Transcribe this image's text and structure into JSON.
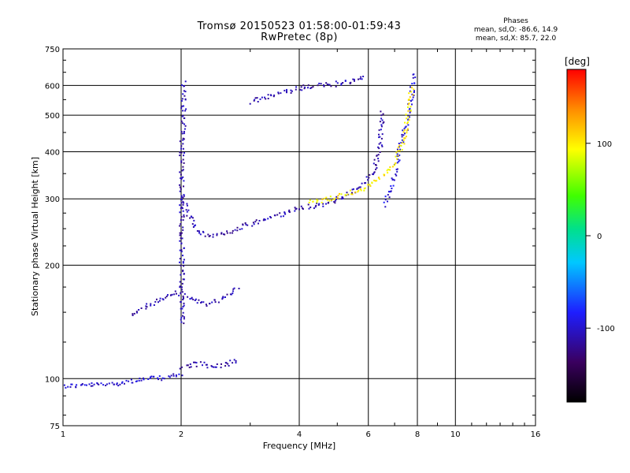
{
  "chart_data": {
    "type": "scatter",
    "title": "Tromsø 20150523 01:58:00-01:59:43",
    "subtitle": "RwPretec (8p)",
    "xlabel": "Frequency [MHz]",
    "ylabel": "Stationary phase Virtual Height [km]",
    "xscale": "log",
    "yscale": "log",
    "xlim": [
      1,
      16
    ],
    "ylim": [
      75,
      750
    ],
    "xticks": [
      1,
      2,
      4,
      6,
      8,
      10,
      16
    ],
    "yticks": [
      75,
      100,
      200,
      300,
      400,
      500,
      600,
      750
    ],
    "grid": true,
    "stats": {
      "heading": "Phases",
      "line_o": "mean, sd,O: -86.6, 14.9",
      "line_x": "mean, sd,X: 85.7, 22.0"
    },
    "colorbar": {
      "label": "[deg]",
      "range": [
        -180,
        180
      ],
      "ticks": [
        100,
        0,
        -100
      ],
      "tick_labels": [
        "100",
        "0",
        "-100"
      ]
    },
    "series": [
      {
        "mode": "O",
        "segments": [
          {
            "x": [
              1.0,
              1.3,
              1.6,
              1.8,
              2.0
            ],
            "y": [
              96,
              97,
              100,
              101,
              103
            ],
            "phase": -100
          },
          {
            "x": [
              2.0,
              2.0,
              2.0,
              2.0,
              2.02,
              2.02
            ],
            "y": [
              140,
              200,
              300,
              400,
              500,
              620
            ],
            "phase": -110
          },
          {
            "x": [
              2.0,
              2.1,
              2.2,
              2.4,
              2.6,
              3.0,
              3.5,
              4.0,
              4.6,
              5.2,
              5.8,
              6.2,
              6.4,
              6.5
            ],
            "y": [
              300,
              270,
              245,
              240,
              245,
              258,
              272,
              285,
              292,
              305,
              330,
              360,
              420,
              520
            ],
            "phase": -110
          },
          {
            "x": [
              3.0,
              3.4,
              3.8,
              4.2,
              4.8,
              5.4,
              5.9
            ],
            "y": [
              545,
              565,
              585,
              598,
              605,
              618,
              632
            ],
            "phase": -110
          },
          {
            "x": [
              1.5,
              1.7,
              1.9,
              2.1,
              2.3,
              2.6,
              2.8
            ],
            "y": [
              150,
              160,
              170,
              165,
              158,
              165,
              175
            ],
            "phase": -110
          },
          {
            "x": [
              2.0,
              2.2,
              2.4,
              2.6,
              2.8
            ],
            "y": [
              108,
              110,
              108,
              110,
              113
            ],
            "phase": -110
          },
          {
            "x": [
              6.6,
              6.8,
              7.0,
              7.2,
              7.5,
              7.7,
              7.8
            ],
            "y": [
              290,
              320,
              360,
              410,
              480,
              560,
              650
            ],
            "phase": -95
          }
        ]
      },
      {
        "mode": "X",
        "segments": [
          {
            "x": [
              4.2,
              4.6,
              5.0,
              5.5,
              6.0,
              6.5,
              7.0,
              7.4,
              7.6,
              7.7
            ],
            "y": [
              295,
              300,
              305,
              315,
              325,
              345,
              380,
              440,
              520,
              600
            ],
            "phase": 100
          }
        ]
      }
    ]
  }
}
